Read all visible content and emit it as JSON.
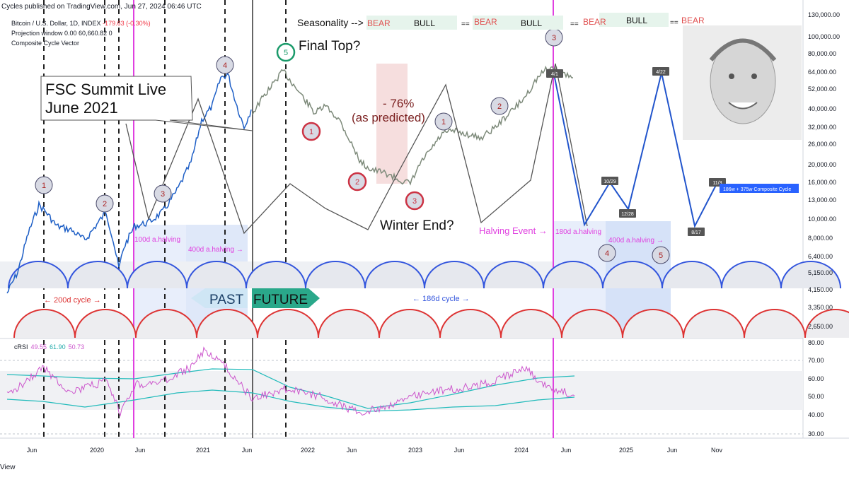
{
  "header": {
    "published": "Cycles published on TradingView.com, Jun 27, 2024 06:46 UTC",
    "symbol_line": "Bitcoin / U.S. Dollar, 1D, INDEX",
    "change": "-179.63 (-0.30%)",
    "projection_line": "Projection window 0.00 60,660.82 0",
    "composite_line": "Composite Cycle Vector"
  },
  "seasonality": {
    "label": "Seasonality -->",
    "items": [
      "BEAR",
      "BULL",
      "==",
      "BEAR",
      "BULL",
      "==",
      "BEAR",
      "BULL",
      "==",
      "BEAR"
    ]
  },
  "annotations": {
    "fsc_line1": "FSC Summit Live",
    "fsc_line2": "June 2021",
    "final_top": "Final Top?",
    "drawdown": "- 76%",
    "as_predicted": "(as predicted)",
    "winter_end": "Winter End?",
    "halving_event": "Halving Event →",
    "past": "PAST",
    "future": "FUTURE",
    "cycle_200": "← 200d cycle →",
    "cycle_186": "← 186d cycle →",
    "h100": "100d a.halving",
    "h400": "400d a.halving →",
    "h180": "180d a.halving",
    "h400b": "400d a.halving →",
    "composite_badge": "186w + 375w Composite Cycle"
  },
  "chart_data": {
    "type": "line",
    "y_scale": "log",
    "price_axis": [
      "130,000.00",
      "100,000.00",
      "80,000.00",
      "64,000.00",
      "52,000.00",
      "40,000.00",
      "32,000.00",
      "26,000.00",
      "20,000.00",
      "16,000.00",
      "13,000.00",
      "10,000.00",
      "8,000.00",
      "6,400.00",
      "5,150.00",
      "4,150.00",
      "3,350.00",
      "2,650.00"
    ],
    "x_axis": [
      "Jun",
      "2020",
      "Jun",
      "2021",
      "Jun",
      "2022",
      "Jun",
      "2023",
      "Jun",
      "2024",
      "Jun",
      "2025",
      "Jun",
      "Nov"
    ],
    "rsi_axis": [
      "80.00",
      "70.00",
      "60.00",
      "50.00",
      "40.00",
      "30.00"
    ],
    "rsi_legend": {
      "name": "cRSI",
      "v1": "49.55",
      "v2": "61.90",
      "v3": "50.73"
    },
    "cycle_labels": [
      "1",
      "2",
      "3",
      "4",
      "5",
      "1",
      "2",
      "3",
      "1",
      "2",
      "3",
      "4",
      "5"
    ],
    "projection_dates": [
      "4/1",
      "10/29",
      "12/28",
      "4/22",
      "8/17",
      "11/3"
    ],
    "colors": {
      "price_past": "#1e5fc6",
      "price_future": "#7d8a7a",
      "projection": "#2255cc",
      "halving": "#e040e0",
      "cycle_blue": "#3355dd",
      "cycle_red": "#dd3333",
      "rsi": "#cc55cc",
      "rsi_band": "#22bbbb"
    }
  }
}
